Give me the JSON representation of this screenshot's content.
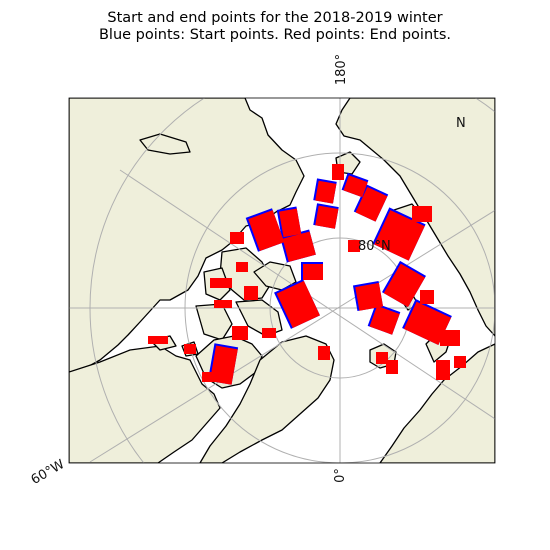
{
  "title": {
    "line1": "Start and end points for the 2018-2019 winter",
    "line2": "Blue points: Start points. Red points: End points."
  },
  "map": {
    "projection": "north polar stereographic",
    "gridlines": true,
    "labels": {
      "lon_180": "180°",
      "lon_0": "0°",
      "lon_60w": "60°W",
      "lat_80n": "80°N",
      "lat_partial": "N"
    },
    "colors": {
      "land": "#efefdb",
      "ocean": "#ffffff",
      "coastline": "#000000",
      "grid": "#b0b0b0",
      "start_points": "#0000ff",
      "end_points": "#ff0000"
    },
    "legend_meaning": {
      "start": "Start points",
      "end": "End points"
    }
  }
}
